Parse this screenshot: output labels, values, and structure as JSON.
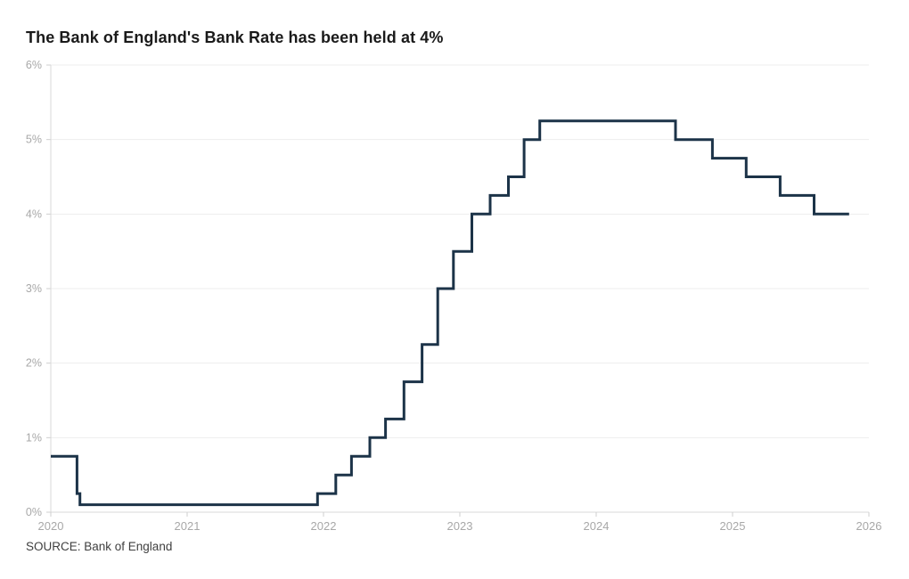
{
  "source": "SOURCE: Bank of England",
  "colors": {
    "background": "#ffffff",
    "line": "#1c3348",
    "gridline": "#ededed",
    "axis": "#d8d8d8",
    "tick": "#cfcfcf",
    "tick_label": "#a8a8a8",
    "title_text": "#1a1a1a",
    "source_text": "#3f3f3f"
  },
  "chart_data": {
    "type": "line",
    "step": true,
    "title": "The Bank of England's Bank Rate has been held at 4%",
    "xlabel": "",
    "ylabel": "",
    "xlim": [
      2020,
      2026
    ],
    "ylim": [
      0,
      6
    ],
    "grid": "horizontal",
    "legend": "none",
    "line_width": 3,
    "x_ticks": [
      {
        "value": 2020,
        "label": "2020"
      },
      {
        "value": 2021,
        "label": "2021"
      },
      {
        "value": 2022,
        "label": "2022"
      },
      {
        "value": 2023,
        "label": "2023"
      },
      {
        "value": 2024,
        "label": "2024"
      },
      {
        "value": 2025,
        "label": "2025"
      },
      {
        "value": 2026,
        "label": "2026"
      }
    ],
    "y_ticks": [
      {
        "value": 0,
        "label": "0%"
      },
      {
        "value": 1,
        "label": "1%"
      },
      {
        "value": 2,
        "label": "2%"
      },
      {
        "value": 3,
        "label": "3%"
      },
      {
        "value": 4,
        "label": "4%"
      },
      {
        "value": 5,
        "label": "5%"
      },
      {
        "value": 6,
        "label": "6%"
      }
    ],
    "points": [
      {
        "x": 2020.0,
        "y": 0.75
      },
      {
        "x": 2020.192,
        "y": 0.25
      },
      {
        "x": 2020.214,
        "y": 0.1
      },
      {
        "x": 2021.956,
        "y": 0.25
      },
      {
        "x": 2022.09,
        "y": 0.5
      },
      {
        "x": 2022.205,
        "y": 0.75
      },
      {
        "x": 2022.34,
        "y": 1.0
      },
      {
        "x": 2022.455,
        "y": 1.25
      },
      {
        "x": 2022.59,
        "y": 1.75
      },
      {
        "x": 2022.723,
        "y": 2.25
      },
      {
        "x": 2022.838,
        "y": 3.0
      },
      {
        "x": 2022.953,
        "y": 3.5
      },
      {
        "x": 2023.088,
        "y": 4.0
      },
      {
        "x": 2023.222,
        "y": 4.25
      },
      {
        "x": 2023.356,
        "y": 4.5
      },
      {
        "x": 2023.471,
        "y": 5.0
      },
      {
        "x": 2023.586,
        "y": 5.25
      },
      {
        "x": 2024.582,
        "y": 5.0
      },
      {
        "x": 2024.852,
        "y": 4.75
      },
      {
        "x": 2025.1,
        "y": 4.5
      },
      {
        "x": 2025.349,
        "y": 4.25
      },
      {
        "x": 2025.598,
        "y": 4.0
      }
    ],
    "line_end_x": 2025.855
  }
}
